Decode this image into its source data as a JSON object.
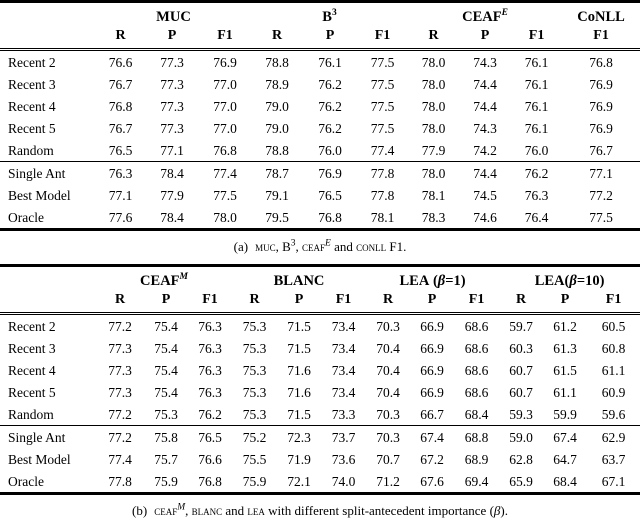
{
  "table_a": {
    "groups": [
      {
        "base": "MUC",
        "sup": "",
        "supit": "",
        "pre": "",
        "beta": "",
        "post": ""
      },
      {
        "base": "B",
        "sup": "3",
        "supit": "",
        "pre": "",
        "beta": "",
        "post": ""
      },
      {
        "base": "CEAF",
        "sup": "",
        "supit": "E",
        "pre": "",
        "beta": "",
        "post": ""
      },
      {
        "base": "CoNLL",
        "sup": "",
        "supit": "",
        "pre": "",
        "beta": "",
        "post": ""
      }
    ],
    "subheaders": [
      "R",
      "P",
      "F1",
      "R",
      "P",
      "F1",
      "R",
      "P",
      "F1",
      "F1"
    ],
    "rows_upper": [
      {
        "label": "Recent 2",
        "values": [
          "76.6",
          "77.3",
          "76.9",
          "78.8",
          "76.1",
          "77.5",
          "78.0",
          "74.3",
          "76.1",
          "76.8"
        ]
      },
      {
        "label": "Recent 3",
        "values": [
          "76.7",
          "77.3",
          "77.0",
          "78.9",
          "76.2",
          "77.5",
          "78.0",
          "74.4",
          "76.1",
          "76.9"
        ]
      },
      {
        "label": "Recent 4",
        "values": [
          "76.8",
          "77.3",
          "77.0",
          "79.0",
          "76.2",
          "77.5",
          "78.0",
          "74.4",
          "76.1",
          "76.9"
        ]
      },
      {
        "label": "Recent 5",
        "values": [
          "76.7",
          "77.3",
          "77.0",
          "79.0",
          "76.2",
          "77.5",
          "78.0",
          "74.3",
          "76.1",
          "76.9"
        ]
      },
      {
        "label": "Random",
        "values": [
          "76.5",
          "77.1",
          "76.8",
          "78.8",
          "76.0",
          "77.4",
          "77.9",
          "74.2",
          "76.0",
          "76.7"
        ]
      }
    ],
    "rows_lower": [
      {
        "label": "Single Ant",
        "values": [
          "76.3",
          "78.4",
          "77.4",
          "78.7",
          "76.9",
          "77.8",
          "78.0",
          "74.4",
          "76.2",
          "77.1"
        ]
      },
      {
        "label": "Best Model",
        "values": [
          "77.1",
          "77.9",
          "77.5",
          "79.1",
          "76.5",
          "77.8",
          "78.1",
          "74.5",
          "76.3",
          "77.2"
        ]
      },
      {
        "label": "Oracle",
        "values": [
          "77.6",
          "78.4",
          "78.0",
          "79.5",
          "76.8",
          "78.1",
          "78.3",
          "74.6",
          "76.4",
          "77.5"
        ]
      }
    ]
  },
  "table_b": {
    "groups": [
      {
        "base": "CEAF",
        "sup": "",
        "supit": "M",
        "pre": "",
        "beta": "",
        "post": ""
      },
      {
        "base": "BLANC",
        "sup": "",
        "supit": "",
        "pre": "",
        "beta": "",
        "post": ""
      },
      {
        "base": "LEA",
        "sup": "",
        "supit": "",
        "pre": " (",
        "beta": "β",
        "post": "=1)"
      },
      {
        "base": "LEA",
        "sup": "",
        "supit": "",
        "pre": "(",
        "beta": "β",
        "post": "=10)"
      }
    ],
    "subheaders": [
      "R",
      "P",
      "F1",
      "R",
      "P",
      "F1",
      "R",
      "P",
      "F1",
      "R",
      "P",
      "F1"
    ],
    "rows_upper": [
      {
        "label": "Recent 2",
        "values": [
          "77.2",
          "75.4",
          "76.3",
          "75.3",
          "71.5",
          "73.4",
          "70.3",
          "66.9",
          "68.6",
          "59.7",
          "61.2",
          "60.5"
        ]
      },
      {
        "label": "Recent 3",
        "values": [
          "77.3",
          "75.4",
          "76.3",
          "75.3",
          "71.5",
          "73.4",
          "70.4",
          "66.9",
          "68.6",
          "60.3",
          "61.3",
          "60.8"
        ]
      },
      {
        "label": "Recent 4",
        "values": [
          "77.3",
          "75.4",
          "76.3",
          "75.3",
          "71.6",
          "73.4",
          "70.4",
          "66.9",
          "68.6",
          "60.7",
          "61.5",
          "61.1"
        ]
      },
      {
        "label": "Recent 5",
        "values": [
          "77.3",
          "75.4",
          "76.3",
          "75.3",
          "71.6",
          "73.4",
          "70.4",
          "66.9",
          "68.6",
          "60.7",
          "61.1",
          "60.9"
        ]
      },
      {
        "label": "Random",
        "values": [
          "77.2",
          "75.3",
          "76.2",
          "75.3",
          "71.5",
          "73.3",
          "70.3",
          "66.7",
          "68.4",
          "59.3",
          "59.9",
          "59.6"
        ]
      }
    ],
    "rows_lower": [
      {
        "label": "Single Ant",
        "values": [
          "77.2",
          "75.8",
          "76.5",
          "75.2",
          "72.3",
          "73.7",
          "70.3",
          "67.4",
          "68.8",
          "59.0",
          "67.4",
          "62.9"
        ]
      },
      {
        "label": "Best Model",
        "values": [
          "77.4",
          "75.7",
          "76.6",
          "75.5",
          "71.9",
          "73.6",
          "70.7",
          "67.2",
          "68.9",
          "62.8",
          "64.7",
          "63.7"
        ]
      },
      {
        "label": "Oracle",
        "values": [
          "77.8",
          "75.9",
          "76.8",
          "75.9",
          "72.1",
          "74.0",
          "71.2",
          "67.6",
          "69.4",
          "65.9",
          "68.4",
          "67.1"
        ]
      }
    ]
  },
  "captions": {
    "a": {
      "label": "(a)",
      "k1": "MUC",
      "t1": ", ",
      "k2": "B",
      "k2sup": "3",
      "t2": ", ",
      "k3": "CEAF",
      "k3sup": "E",
      "t3": " and ",
      "k4": "CONLL",
      "t4": " F1."
    },
    "b": {
      "label": "(b)",
      "k1": "CEAF",
      "k1sup": "M",
      "t1": ", ",
      "k2": "BLANC",
      "t2": " and ",
      "k3": "LEA",
      "t3": " with different split-antecedent importance (",
      "beta": "β",
      "t4": ")."
    }
  }
}
